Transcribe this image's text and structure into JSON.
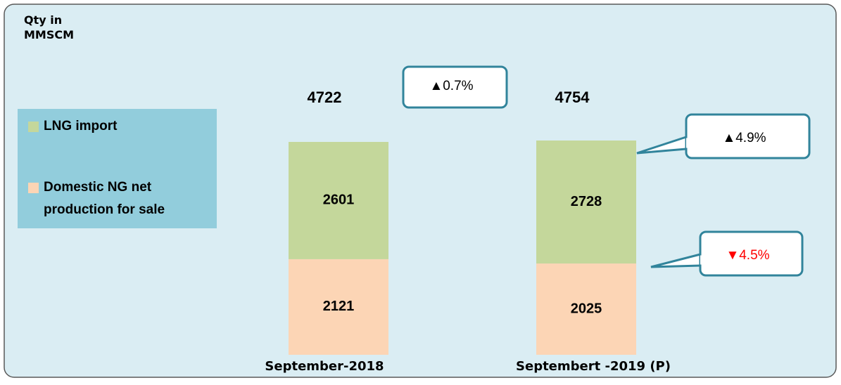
{
  "chart_data": {
    "type": "stacked_bar",
    "y_label": "Qty in MMSCM",
    "categories": [
      "September-2018",
      "Septembert -2019 (P)"
    ],
    "series": [
      {
        "name": "Domestic NG net production for sale",
        "color": "#fcd5b5",
        "values": [
          2121,
          2025
        ]
      },
      {
        "name": "LNG import",
        "color": "#c4d79b",
        "values": [
          2601,
          2728
        ]
      }
    ],
    "totals": [
      4722,
      4754
    ],
    "annotations": [
      {
        "text": "▲0.7%",
        "color": "#000000"
      },
      {
        "text": "▲4.9%",
        "color": "#000000"
      },
      {
        "text": "▼4.5%",
        "color": "#ff0000"
      }
    ]
  }
}
